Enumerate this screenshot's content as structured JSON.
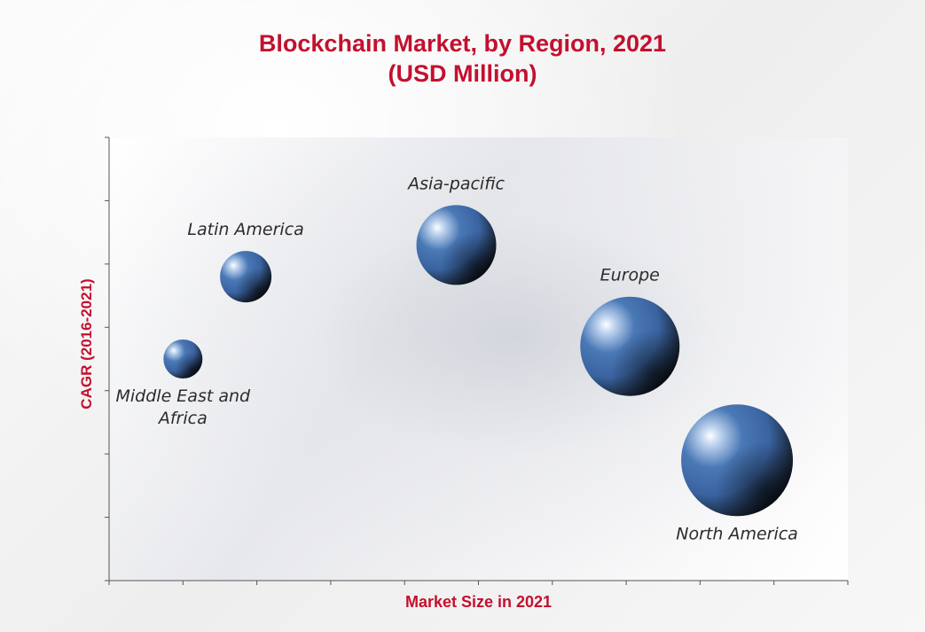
{
  "chart": {
    "title_line1": "Blockchain Market, by Region, 2021",
    "title_line2": "(USD Million)"
  },
  "chart_data": {
    "type": "scatter",
    "title": "Blockchain Market, by Region, 2021 (USD Million)",
    "xlabel": "Market Size in 2021",
    "ylabel": "CAGR (2016-2021)",
    "xlim": [
      0,
      10
    ],
    "ylim": [
      0,
      7
    ],
    "grid": false,
    "legend": "none",
    "bubble_color": "#3d69a6",
    "points": [
      {
        "label": "Middle East and Africa",
        "label_lines": [
          "Middle East and",
          "Africa"
        ],
        "x": 1.0,
        "y": 3.5,
        "size": 22,
        "label_pos": "below"
      },
      {
        "label": "Latin America",
        "label_lines": [
          "Latin America"
        ],
        "x": 1.85,
        "y": 4.8,
        "size": 29,
        "label_pos": "above"
      },
      {
        "label": "Asia-pacific",
        "label_lines": [
          "Asia-pacific"
        ],
        "x": 4.7,
        "y": 5.3,
        "size": 45,
        "label_pos": "above"
      },
      {
        "label": "Europe",
        "label_lines": [
          "Europe"
        ],
        "x": 7.05,
        "y": 3.7,
        "size": 56,
        "label_pos": "above"
      },
      {
        "label": "North America",
        "label_lines": [
          "North America"
        ],
        "x": 8.5,
        "y": 1.9,
        "size": 63,
        "label_pos": "below"
      }
    ]
  }
}
